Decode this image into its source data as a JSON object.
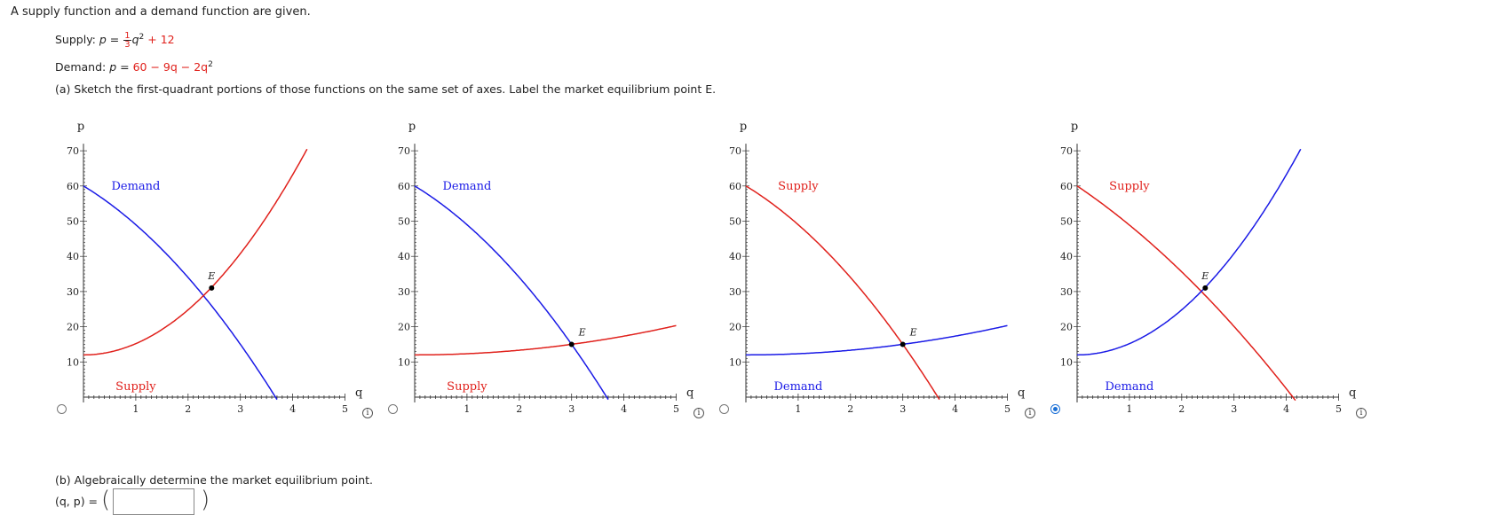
{
  "problem": {
    "intro": "A supply function and a demand function are given.",
    "supply": {
      "label": "Supply: ",
      "var": "p",
      "equals": " = ",
      "num": "1",
      "den": "3",
      "q": "q",
      "rest": " + 12"
    },
    "demand": {
      "label": "Demand: ",
      "var": "p",
      "equals": " = ",
      "rest": "60 − 9q − 2q",
      "exp": "2"
    },
    "part_a": "(a) Sketch the first-quadrant portions of those functions on the same set of axes. Label the market equilibrium point E.",
    "part_b": "(b) Algebraically determine the market equilibrium point.",
    "answer_label": "(q, p) = ",
    "answer_value": ""
  },
  "colors": {
    "supply_red": "#e0201b",
    "demand_blue": "#1a1ae6",
    "radio_selected": "#1a6fd6"
  },
  "options": [
    {
      "id": "A",
      "selected": false,
      "chart_data": {
        "type": "line",
        "xlabel": "q",
        "ylabel": "p",
        "xlim": [
          0,
          5
        ],
        "ylim": [
          0,
          70
        ],
        "xticks": [
          "1",
          "2",
          "3",
          "4",
          "5"
        ],
        "yticks": [
          "10",
          "20",
          "30",
          "40",
          "50",
          "60",
          "70"
        ],
        "series": [
          {
            "name": "Demand",
            "color": "blue",
            "formula": "60 - 9q - 2q^2",
            "label_at": [
              1,
              60
            ]
          },
          {
            "name": "Supply",
            "color": "red",
            "formula": "q^2/3 + 12 (stretched)",
            "label_at": [
              1,
              3
            ]
          }
        ],
        "equilibrium": {
          "label": "E",
          "q": 2.45,
          "p": 31
        }
      }
    },
    {
      "id": "B",
      "selected": false,
      "chart_data": {
        "type": "line",
        "xlabel": "q",
        "ylabel": "p",
        "xlim": [
          0,
          5
        ],
        "ylim": [
          0,
          70
        ],
        "xticks": [
          "1",
          "2",
          "3",
          "4",
          "5"
        ],
        "yticks": [
          "10",
          "20",
          "30",
          "40",
          "50",
          "60",
          "70"
        ],
        "series": [
          {
            "name": "Demand",
            "color": "blue",
            "formula": "60 - 9q - 2q^2",
            "label_at": [
              1,
              60
            ]
          },
          {
            "name": "Supply",
            "color": "red",
            "formula": "q^2/3 + 12",
            "label_at": [
              1,
              3
            ]
          }
        ],
        "equilibrium": {
          "label": "E",
          "q": 3,
          "p": 15
        }
      }
    },
    {
      "id": "C",
      "selected": false,
      "chart_data": {
        "type": "line",
        "xlabel": "q",
        "ylabel": "p",
        "xlim": [
          0,
          5
        ],
        "ylim": [
          0,
          70
        ],
        "xticks": [
          "1",
          "2",
          "3",
          "4",
          "5"
        ],
        "yticks": [
          "10",
          "20",
          "30",
          "40",
          "50",
          "60",
          "70"
        ],
        "series": [
          {
            "name": "Supply",
            "color": "red",
            "formula": "60 - 9q - 2q^2",
            "label_at": [
              1,
              60
            ]
          },
          {
            "name": "Demand",
            "color": "blue",
            "formula": "q^2/3 + 12",
            "label_at": [
              1,
              3
            ]
          }
        ],
        "equilibrium": {
          "label": "E",
          "q": 3,
          "p": 15
        }
      }
    },
    {
      "id": "D",
      "selected": true,
      "chart_data": {
        "type": "line",
        "xlabel": "q",
        "ylabel": "p",
        "xlim": [
          0,
          5
        ],
        "ylim": [
          0,
          70
        ],
        "xticks": [
          "1",
          "2",
          "3",
          "4",
          "5"
        ],
        "yticks": [
          "10",
          "20",
          "30",
          "40",
          "50",
          "60",
          "70"
        ],
        "series": [
          {
            "name": "Supply",
            "color": "red",
            "formula": "60 - 9q - 2q^2 (stretched)",
            "label_at": [
              1,
              60
            ]
          },
          {
            "name": "Demand",
            "color": "blue",
            "formula": "q^2/3 + 12 (stretched)",
            "label_at": [
              1,
              3
            ]
          }
        ],
        "equilibrium": {
          "label": "E",
          "q": 2.45,
          "p": 31
        }
      }
    }
  ],
  "icons": {
    "info": "info-icon",
    "radio": "radio-button"
  }
}
